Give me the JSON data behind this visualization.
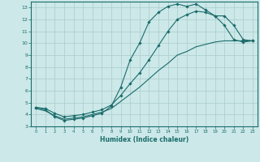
{
  "xlabel": "Humidex (Indice chaleur)",
  "bg_color": "#cce8e8",
  "grid_color": "#aacccc",
  "line_color": "#1a6b6b",
  "xlim": [
    -0.5,
    23.5
  ],
  "ylim": [
    3,
    13.5
  ],
  "xticks": [
    0,
    1,
    2,
    3,
    4,
    5,
    6,
    7,
    8,
    9,
    10,
    11,
    12,
    13,
    14,
    15,
    16,
    17,
    18,
    19,
    20,
    21,
    22,
    23
  ],
  "yticks": [
    3,
    4,
    5,
    6,
    7,
    8,
    9,
    10,
    11,
    12,
    13
  ],
  "line1_x": [
    0,
    1,
    2,
    3,
    4,
    5,
    6,
    7,
    8,
    9,
    10,
    11,
    12,
    13,
    14,
    15,
    16,
    17,
    18,
    19,
    20,
    21,
    22,
    23
  ],
  "line1_y": [
    4.6,
    4.4,
    3.8,
    3.5,
    3.6,
    3.7,
    3.9,
    4.1,
    4.7,
    6.3,
    8.6,
    10.0,
    11.8,
    12.6,
    13.1,
    13.3,
    13.1,
    13.3,
    12.8,
    12.3,
    11.5,
    10.3,
    10.1,
    10.2
  ],
  "line2_x": [
    0,
    1,
    2,
    3,
    4,
    5,
    6,
    7,
    8,
    9,
    10,
    11,
    12,
    13,
    14,
    15,
    16,
    17,
    18,
    19,
    20,
    21,
    22,
    23
  ],
  "line2_y": [
    4.6,
    4.5,
    4.1,
    3.8,
    3.9,
    4.0,
    4.2,
    4.4,
    4.8,
    5.6,
    6.6,
    7.5,
    8.6,
    9.8,
    11.0,
    12.0,
    12.4,
    12.7,
    12.6,
    12.3,
    12.3,
    11.5,
    10.3,
    10.2
  ],
  "line3_x": [
    0,
    1,
    2,
    3,
    4,
    5,
    6,
    7,
    8,
    9,
    10,
    11,
    12,
    13,
    14,
    15,
    16,
    17,
    18,
    19,
    20,
    21,
    22,
    23
  ],
  "line3_y": [
    4.5,
    4.3,
    3.9,
    3.6,
    3.7,
    3.8,
    4.0,
    4.2,
    4.5,
    5.1,
    5.7,
    6.3,
    7.0,
    7.7,
    8.3,
    9.0,
    9.3,
    9.7,
    9.9,
    10.1,
    10.2,
    10.2,
    10.2,
    10.2
  ]
}
